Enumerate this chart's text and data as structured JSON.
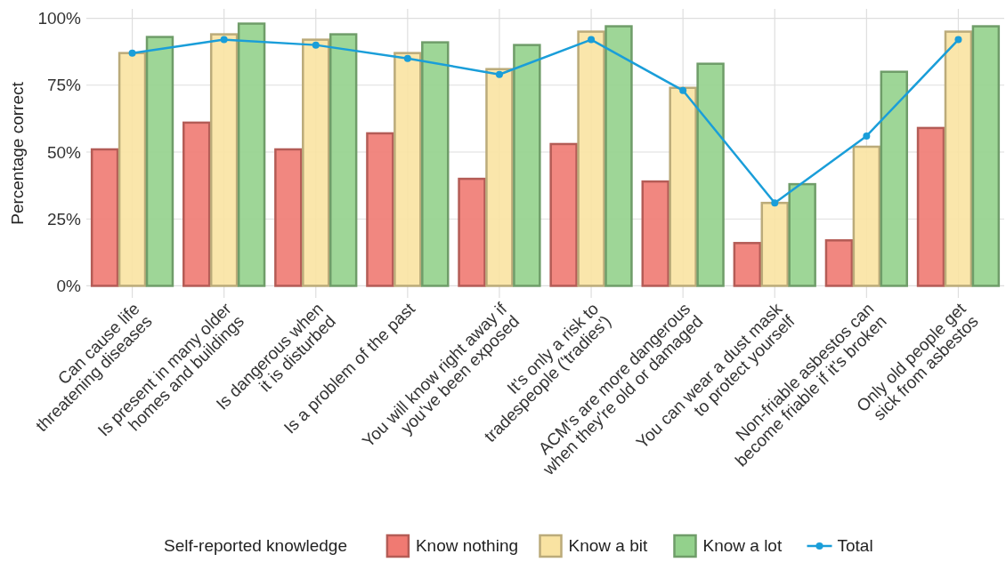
{
  "chart_data": {
    "type": "bar",
    "ylabel": "Percentage correct",
    "legend_title": "Self-reported knowledge",
    "legend": "bottom",
    "grid": true,
    "categories": [
      "Can cause life\nthreatening diseases",
      "Is present in many older\nhomes and buildings",
      "Is dangerous when\nit is disturbed",
      "Is a problem of the past",
      "You will know right away if\nyou've been exposed",
      "It's only a risk to\ntradespeople ('tradies')",
      "ACM's are more dangerous\nwhen they're old or damaged",
      "You can wear a dust mask\nto protect yourself",
      "Non-friable asbestos can\nbecome friable if it's broken",
      "Only old people get\nsick from asbestos"
    ],
    "ylim": [
      -4.5,
      103.5
    ],
    "yticks": [
      {
        "value": 0,
        "label": "0%"
      },
      {
        "value": 25,
        "label": "25%"
      },
      {
        "value": 50,
        "label": "50%"
      },
      {
        "value": 75,
        "label": "75%"
      },
      {
        "value": 100,
        "label": "100%"
      }
    ],
    "series": [
      {
        "name": "Know nothing",
        "color": "#f07a72",
        "values": [
          51,
          61,
          51,
          57,
          40,
          53,
          39,
          16,
          17,
          59
        ]
      },
      {
        "name": "Know a bit",
        "color": "#f9e3a2",
        "values": [
          87,
          94,
          92,
          87,
          81,
          95,
          74,
          31,
          52,
          95
        ]
      },
      {
        "name": "Know a lot",
        "color": "#93d18c",
        "values": [
          93,
          98,
          94,
          91,
          90,
          97,
          83,
          38,
          80,
          97
        ]
      },
      {
        "name": "Total",
        "type": "line",
        "color": "#1a9ed9",
        "marker": "circle",
        "values": [
          87,
          92,
          90,
          85,
          79,
          92,
          73,
          31,
          56,
          92
        ]
      }
    ]
  }
}
